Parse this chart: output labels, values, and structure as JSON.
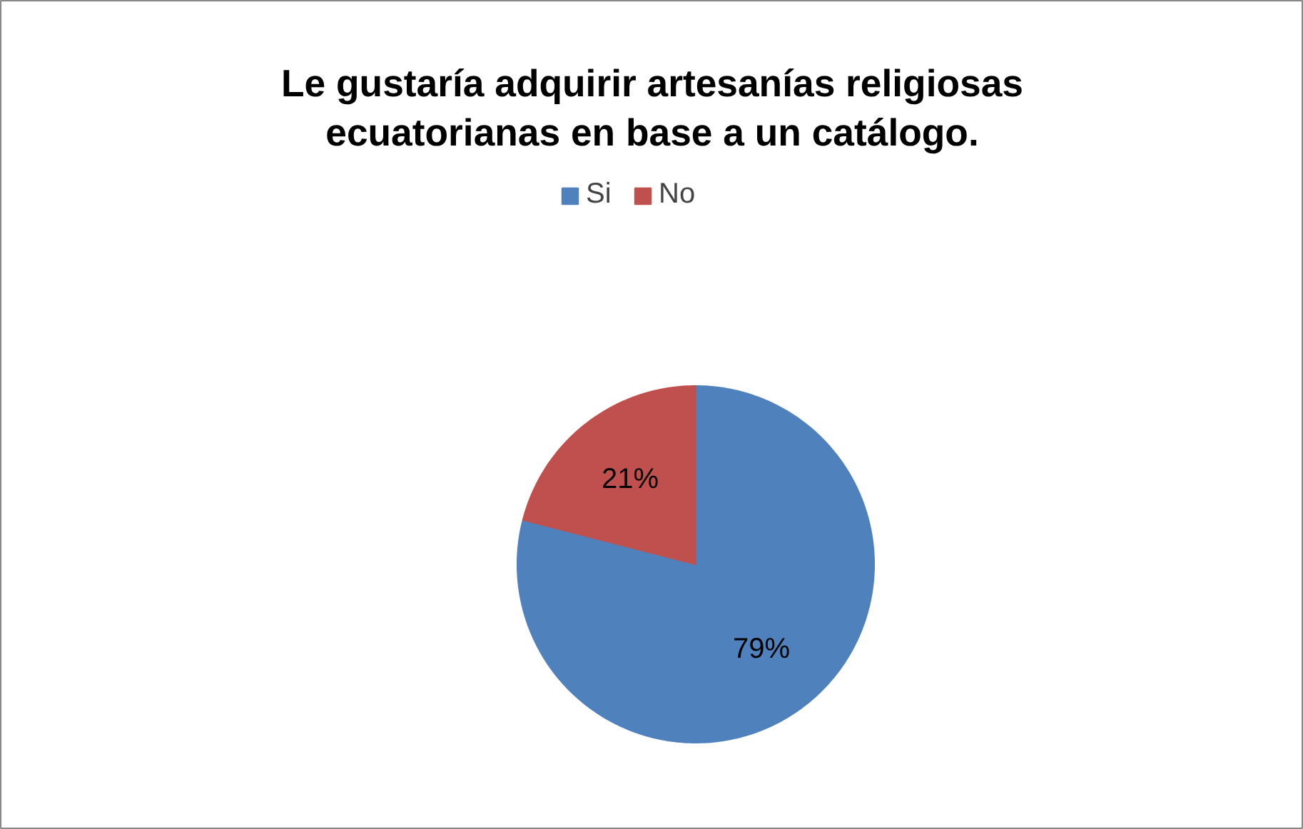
{
  "chart_data": {
    "type": "pie",
    "title": "Le gustaría adquirir artesanías religiosas\necuatorianas en base a un catálogo.",
    "categories": [
      "Si",
      "No"
    ],
    "values": [
      79,
      21
    ],
    "colors": [
      "#4f81bd",
      "#c0504d"
    ],
    "value_labels": [
      "79%",
      "21%"
    ],
    "legend": "top"
  }
}
